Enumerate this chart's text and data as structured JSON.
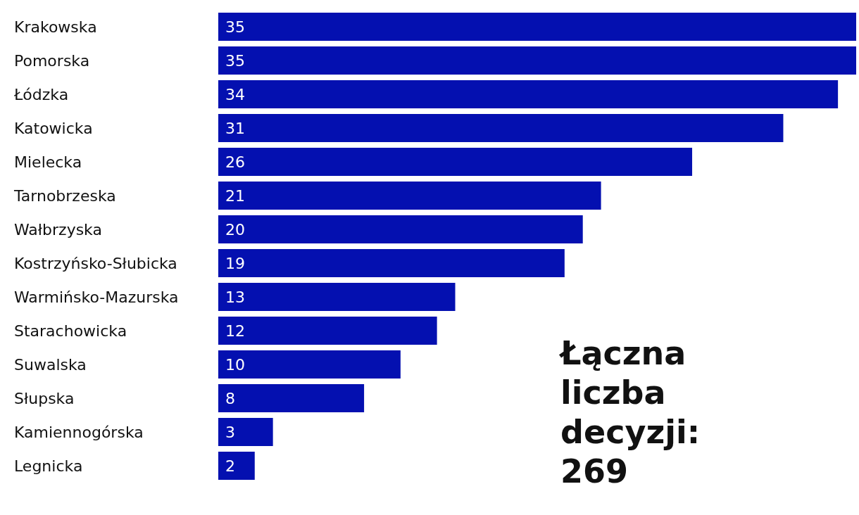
{
  "chart_data": {
    "type": "bar",
    "orientation": "horizontal",
    "categories": [
      "Krakowska",
      "Pomorska",
      "Łódzka",
      "Katowicka",
      "Mielecka",
      "Tarnobrzeska",
      "Wałbrzyska",
      "Kostrzyńsko-Słubicka",
      "Warmińsko-Mazurska",
      "Starachowicka",
      "Suwalska",
      "Słupska",
      "Kamiennogórska",
      "Legnicka"
    ],
    "values": [
      35,
      35,
      34,
      31,
      26,
      21,
      20,
      19,
      13,
      12,
      10,
      8,
      3,
      2
    ],
    "color": "#0410b0",
    "data_labels": true,
    "annotations": [
      "Łączna liczba decyzji: 269"
    ]
  }
}
